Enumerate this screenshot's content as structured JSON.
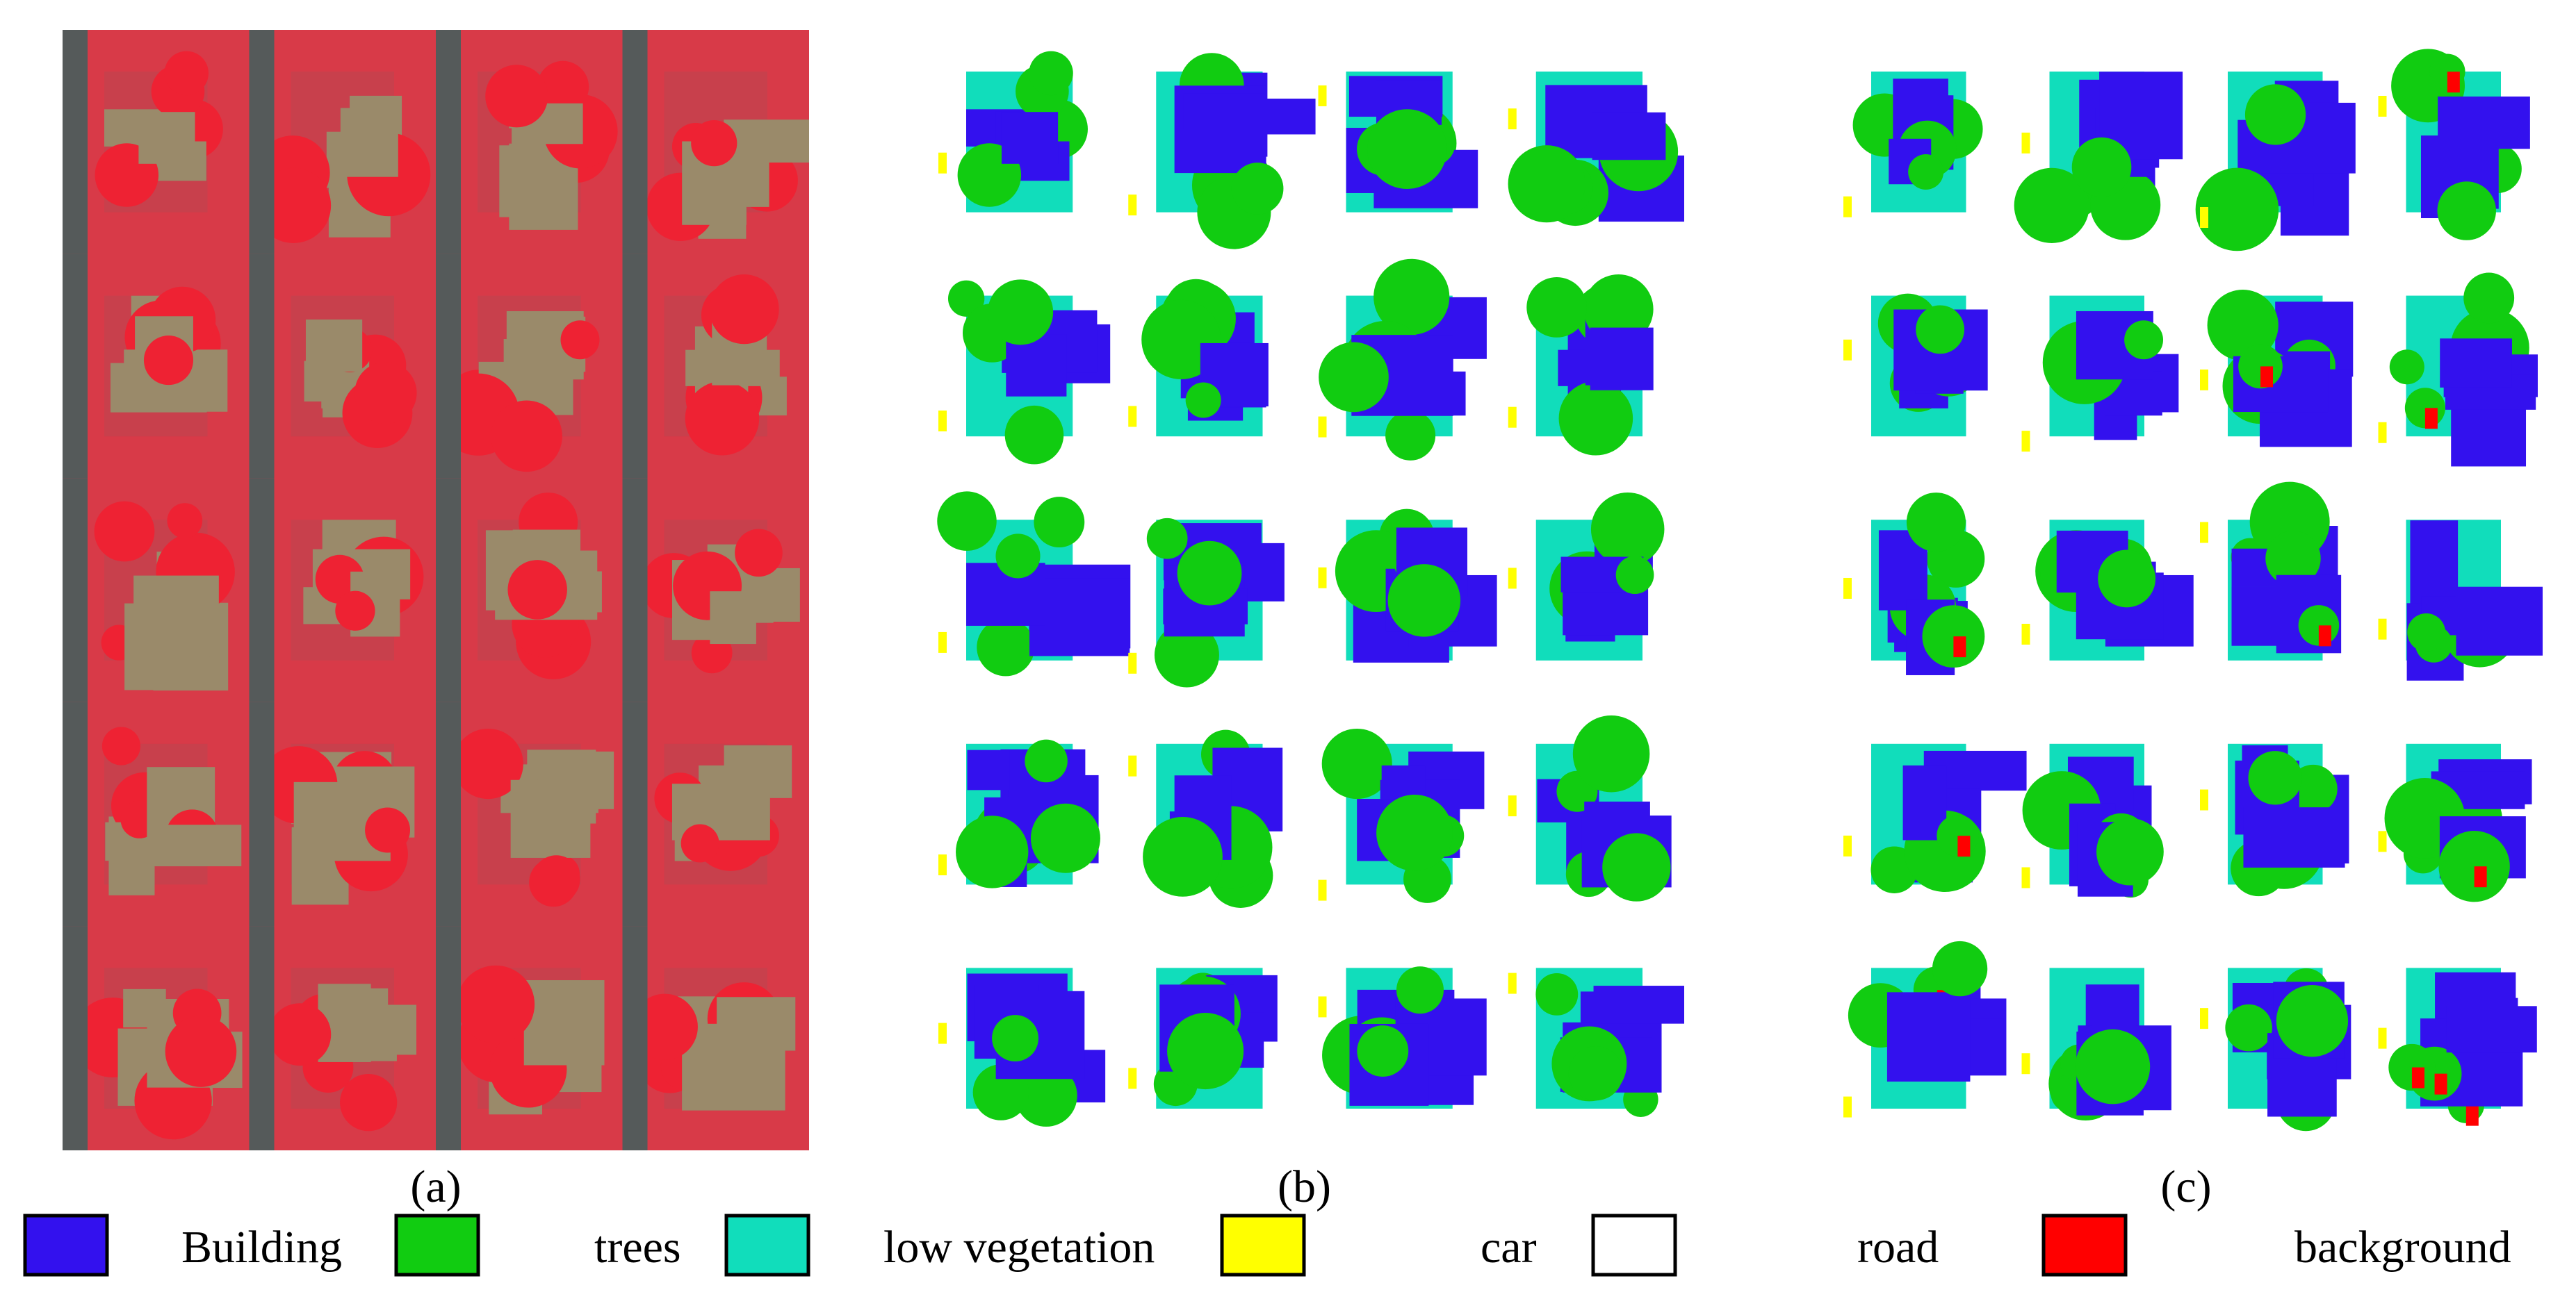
{
  "figure": {
    "panels": [
      {
        "caption": "(a)"
      },
      {
        "caption": "(b)"
      },
      {
        "caption": "(c)"
      }
    ],
    "legend": [
      {
        "label": "Building",
        "color": "#3311ee"
      },
      {
        "label": "trees",
        "color": "#11cc11"
      },
      {
        "label": "low vegetation",
        "color": "#11ddbb"
      },
      {
        "label": "car",
        "color": "#ffff00"
      },
      {
        "label": "road",
        "color": "#ffffff"
      },
      {
        "label": "background",
        "color": "#ff0000"
      }
    ]
  }
}
